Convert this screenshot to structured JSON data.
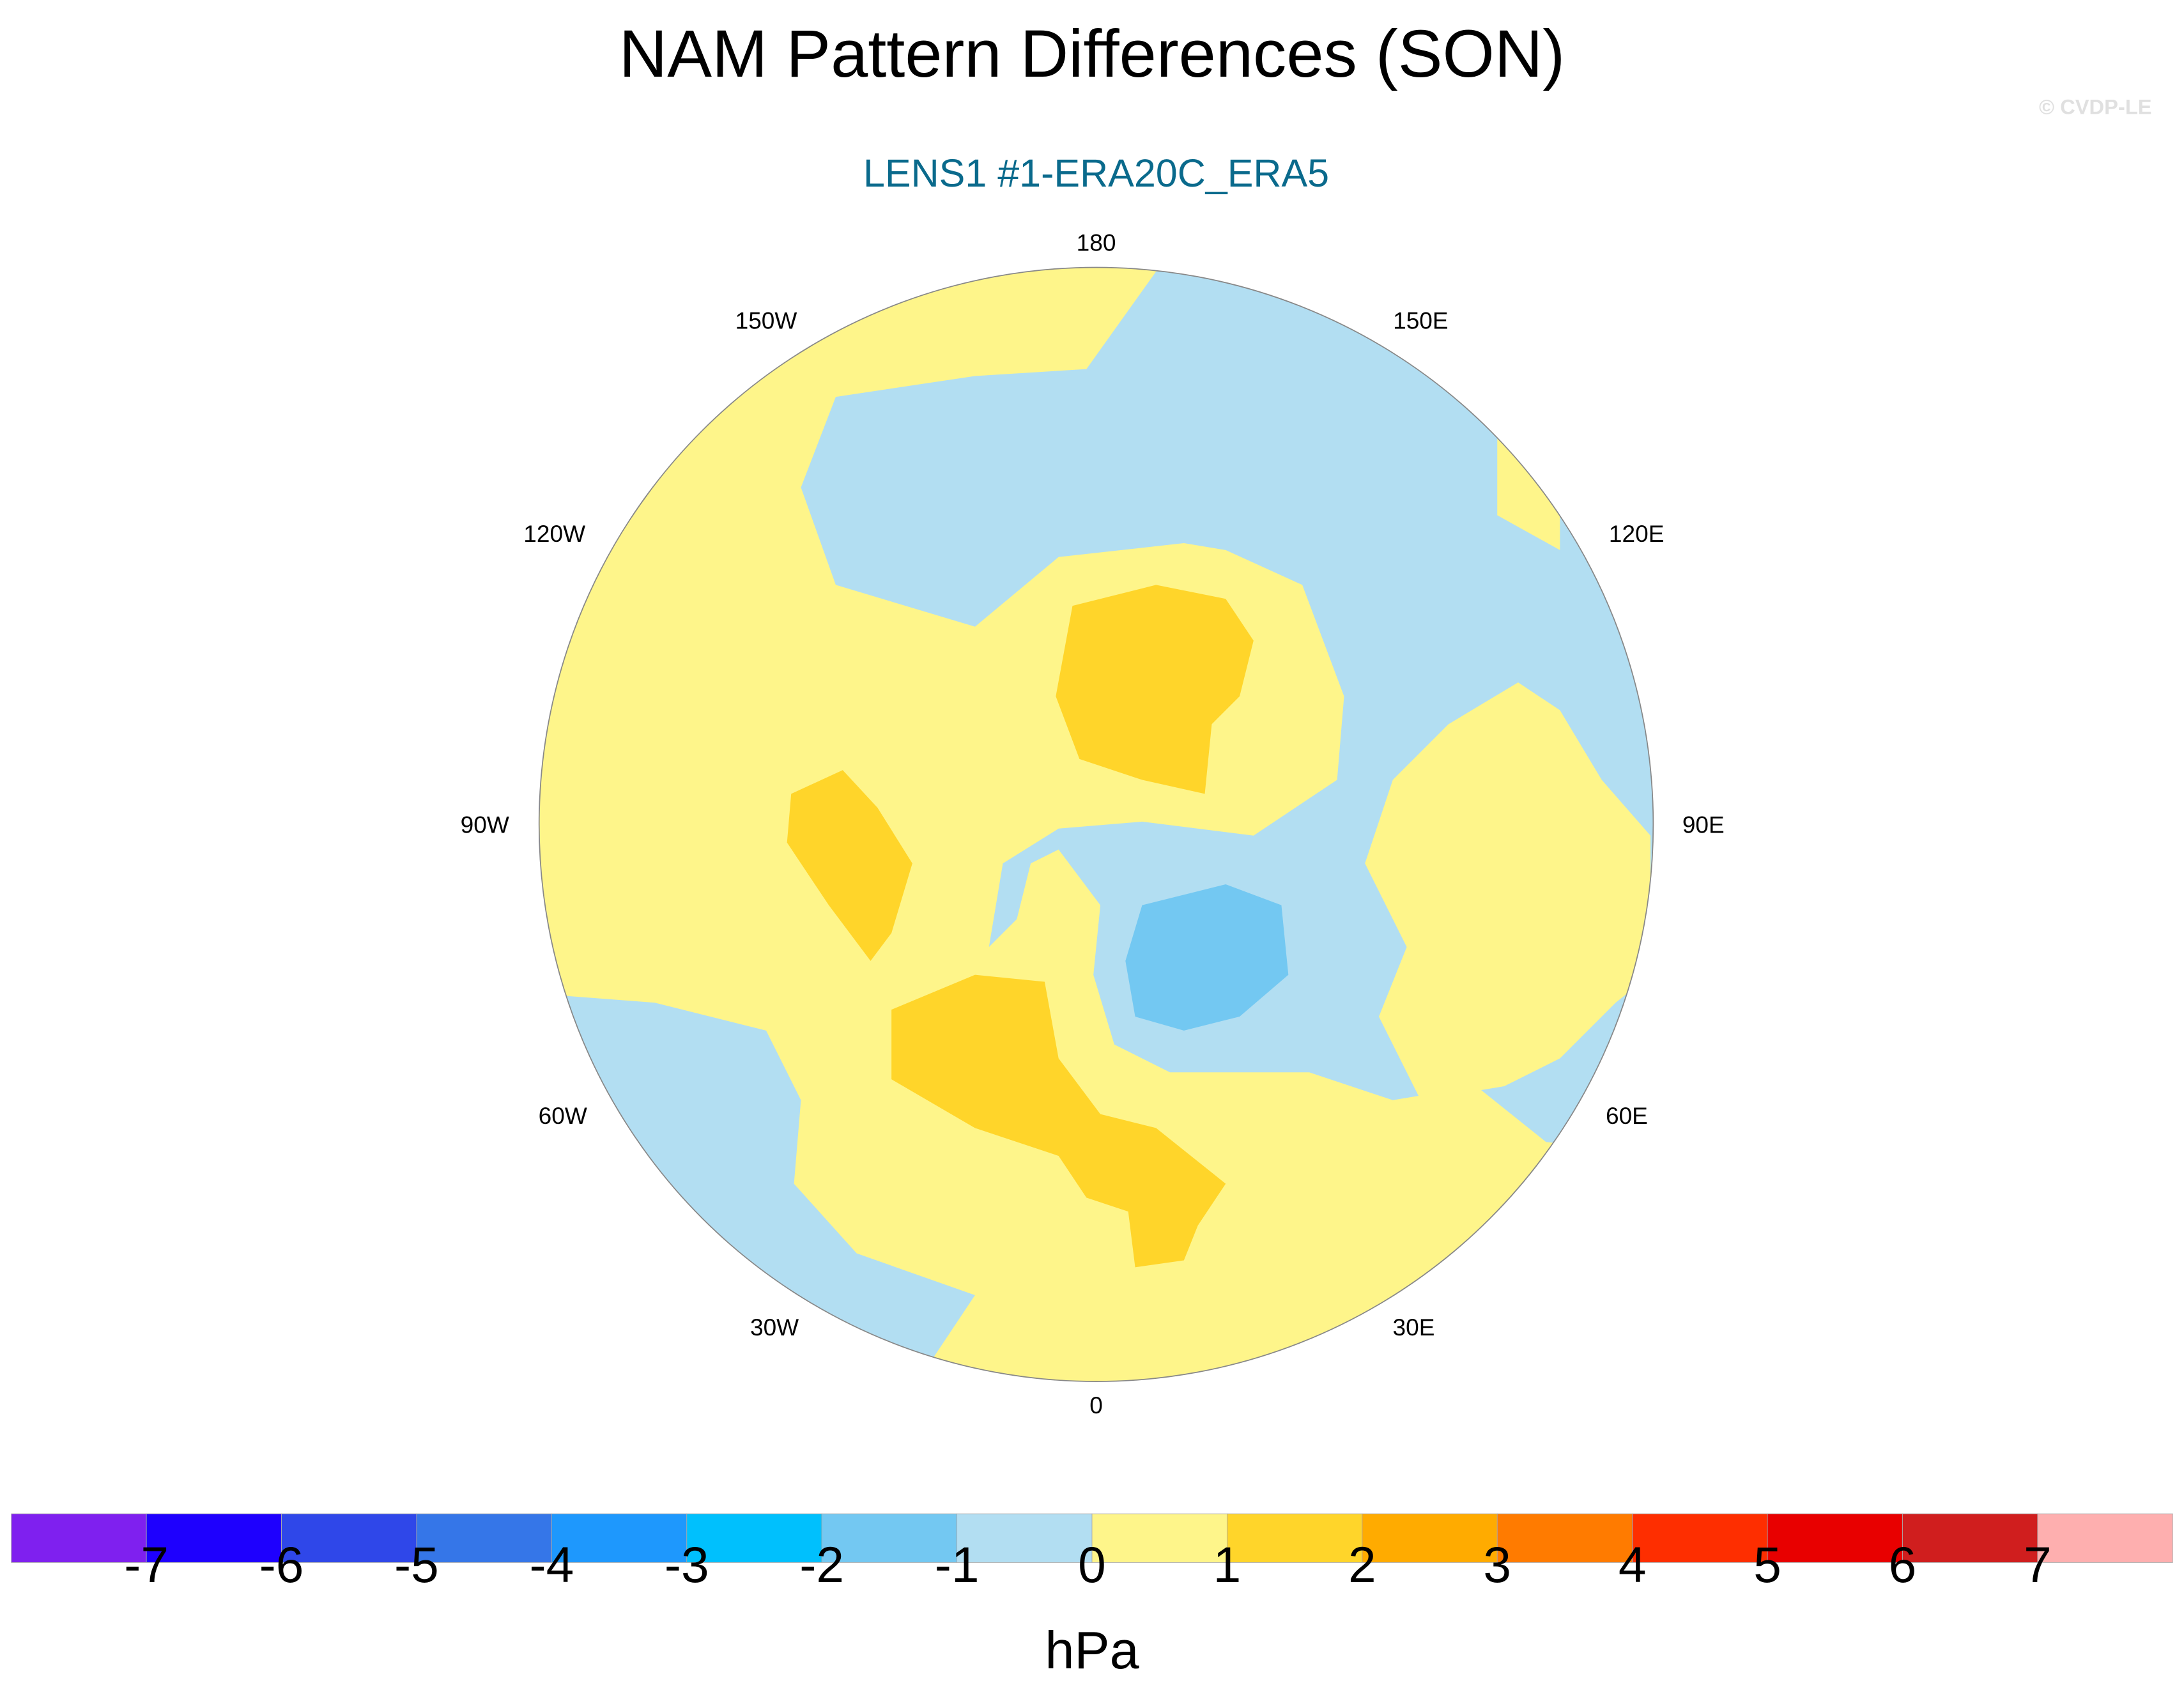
{
  "chart_data": {
    "type": "heatmap",
    "projection": "north polar stereographic",
    "title": "NAM Pattern Differences (SON)",
    "subtitle": "LENS1 #1-ERA20C_ERA5",
    "watermark": "© CVDP-LE",
    "longitude_labels": [
      "180",
      "150E",
      "120E",
      "90E",
      "60E",
      "30E",
      "0",
      "30W",
      "60W",
      "90W",
      "120W",
      "150W"
    ],
    "colorbar": {
      "label": "hPa",
      "tick_labels": [
        "-7",
        "-6",
        "-5",
        "-4",
        "-3",
        "-2",
        "-1",
        "0",
        "1",
        "2",
        "3",
        "4",
        "5",
        "6",
        "7"
      ],
      "colors": [
        "#7f20ef",
        "#1e00fe",
        "#2f47e9",
        "#3576e8",
        "#1e98fd",
        "#00c0fd",
        "#73c8f2",
        "#b2def2",
        "#fef58a",
        "#ffd52a",
        "#ffab00",
        "#ff7b00",
        "#fe2e00",
        "#e80000",
        "#d01e1e",
        "#feafaf"
      ]
    },
    "regions_hPa": {
      "Arctic_Europe_Siberia_North_Pacific": "-1 to 0",
      "Scandinavia": "-2 to -1",
      "North_America_Atlantic_Mediterranean": "0 to 1",
      "Alaska_Beaufort": "1 to 2",
      "Hudson_Bay": "1 to 2",
      "North_Atlantic_Mediterranean": "1 to 2",
      "Subtropical_Atlantic": "-1 to 0"
    }
  }
}
